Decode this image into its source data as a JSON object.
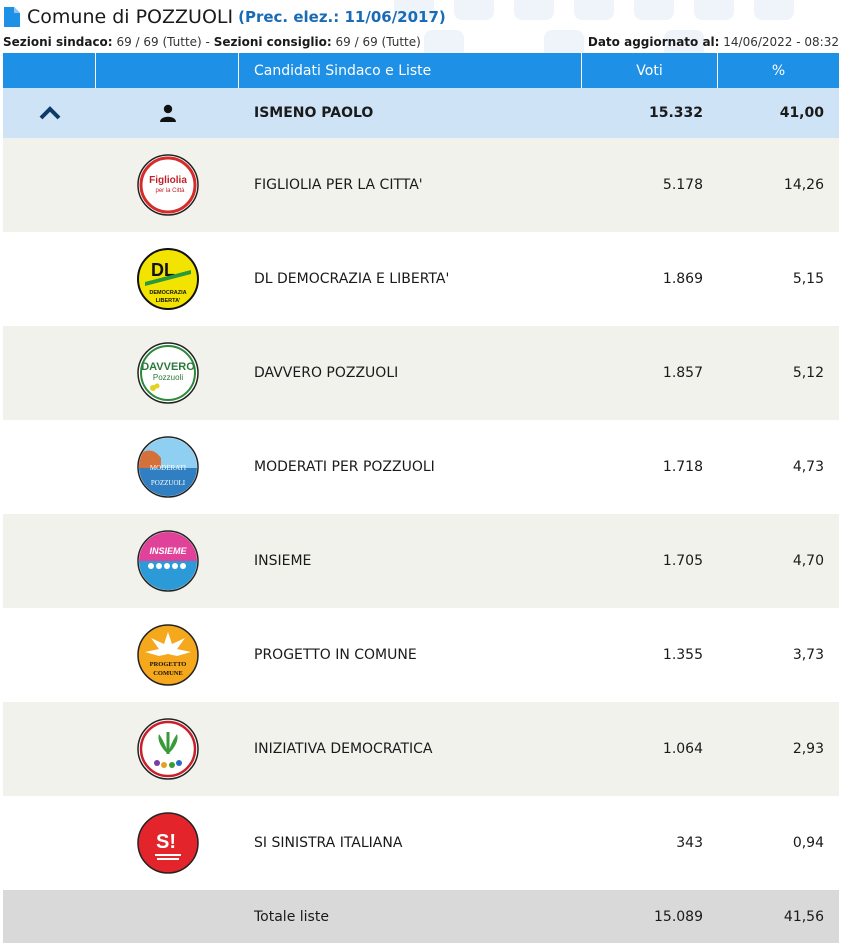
{
  "header": {
    "title": "Comune di POZZUOLI",
    "prev_election": "(Prec. elez.: 11/06/2017)"
  },
  "subline": {
    "sezioni_sindaco_label": "Sezioni sindaco:",
    "sezioni_sindaco_value": "69 / 69 (Tutte)",
    "separator": " - ",
    "sezioni_consiglio_label": "Sezioni consiglio:",
    "sezioni_consiglio_value": "69 / 69 (Tutte)",
    "updated_label": "Dato aggiornato al:",
    "updated_value": "14/06/2022 - 08:32"
  },
  "table": {
    "columns": [
      "",
      "",
      "Candidati Sindaco e Liste",
      "Voti",
      "%"
    ],
    "candidate": {
      "name": "ISMENO PAOLO",
      "votes": "15.332",
      "pct": "41,00",
      "icon": "person-icon",
      "toggle_icon": "chevron-up-icon"
    },
    "lists": [
      {
        "name": "FIGLIOLIA PER LA CITTA'",
        "votes": "5.178",
        "pct": "14,26",
        "logo": "Figliolia per la Città"
      },
      {
        "name": "DL DEMOCRAZIA E LIBERTA'",
        "votes": "1.869",
        "pct": "5,15",
        "logo": "DL DEMOCRAZIA E LIBERTA'"
      },
      {
        "name": "DAVVERO POZZUOLI",
        "votes": "1.857",
        "pct": "5,12",
        "logo": "DAVVERO Pozzuoli"
      },
      {
        "name": "MODERATI PER POZZUOLI",
        "votes": "1.718",
        "pct": "4,73",
        "logo": "MODERATI PER POZZUOLI"
      },
      {
        "name": "INSIEME",
        "votes": "1.705",
        "pct": "4,70",
        "logo": "INSIEME"
      },
      {
        "name": "PROGETTO IN COMUNE",
        "votes": "1.355",
        "pct": "3,73",
        "logo": "PROGETTO COMUNE"
      },
      {
        "name": "INIZIATIVA DEMOCRATICA",
        "votes": "1.064",
        "pct": "2,93",
        "logo": "INIZIATIVA DEMOCRATICA"
      },
      {
        "name": "SI SINISTRA ITALIANA",
        "votes": "343",
        "pct": "0,94",
        "logo": "SI SINISTRA ITALIANA"
      }
    ],
    "totale": {
      "label": "Totale liste",
      "votes": "15.089",
      "pct": "41,56"
    }
  },
  "colors": {
    "header_blue": "#1e90e6",
    "candidate_row": "#cfe3f6",
    "alt_row": "#f2f2ec",
    "total_row": "#d9d9d9",
    "title_blue": "#1a6bb5"
  }
}
